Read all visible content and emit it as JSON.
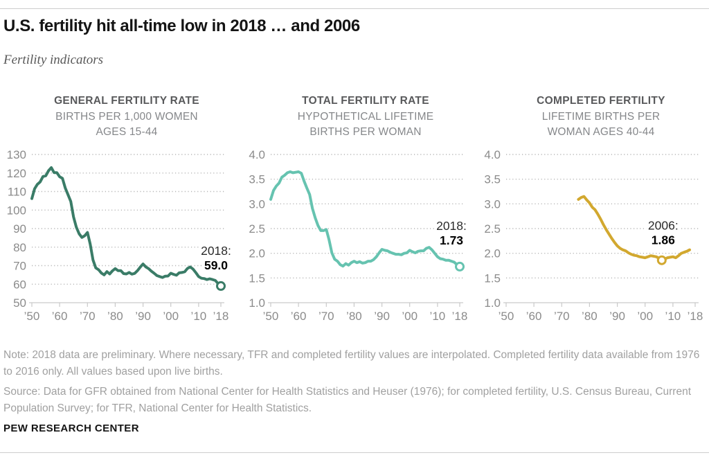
{
  "header": {
    "title": "U.S. fertility hit all-time low in 2018 … and 2006",
    "subtitle": "Fertility indicators"
  },
  "chart_data": [
    {
      "type": "line",
      "title": "GENERAL FERTILITY RATE",
      "subtitle_lines": [
        "BIRTHS PER 1,000 WOMEN",
        "AGES 15-44"
      ],
      "color": "#3a7c67",
      "ylim": [
        50,
        130
      ],
      "xlim": [
        1950,
        2018
      ],
      "yticks": [
        50,
        60,
        70,
        80,
        90,
        100,
        110,
        120,
        130
      ],
      "ytick_labels": [
        "50",
        "60",
        "70",
        "80",
        "90",
        "100",
        "110",
        "120",
        "130"
      ],
      "xticks": [
        1950,
        1960,
        1970,
        1980,
        1990,
        2000,
        2010,
        2018
      ],
      "xtick_labels": [
        "’50",
        "’60",
        "’70",
        "’80",
        "’90",
        "’00",
        "’10",
        "’18"
      ],
      "grid": "dotted-horizontal",
      "x_start": 1950,
      "values": [
        106.2,
        111.5,
        113.9,
        115.2,
        118.1,
        118.5,
        121.2,
        122.9,
        120.2,
        120.2,
        118.0,
        117.1,
        112.0,
        108.3,
        104.7,
        96.3,
        90.8,
        87.2,
        85.2,
        86.1,
        87.9,
        81.6,
        73.1,
        68.8,
        67.8,
        66.0,
        65.0,
        66.8,
        65.5,
        67.2,
        68.4,
        67.3,
        67.3,
        65.7,
        65.5,
        66.3,
        65.4,
        65.8,
        67.3,
        69.2,
        70.9,
        69.3,
        68.4,
        67.0,
        65.9,
        64.6,
        64.1,
        63.6,
        64.3,
        64.4,
        65.9,
        65.3,
        64.8,
        66.1,
        66.3,
        66.7,
        68.5,
        69.3,
        68.1,
        66.2,
        64.1,
        63.2,
        63.0,
        62.5,
        62.9,
        62.5,
        62.0,
        60.3,
        59.0
      ],
      "marker": {
        "year": 2018,
        "value": 59.0
      },
      "annotation": {
        "label": "2018:",
        "value": "59.0"
      }
    },
    {
      "type": "line",
      "title": "TOTAL FERTILITY RATE",
      "subtitle_lines": [
        "HYPOTHETICAL LIFETIME",
        "BIRTHS PER WOMAN"
      ],
      "color": "#66c3b0",
      "ylim": [
        1.0,
        4.0
      ],
      "xlim": [
        1950,
        2018
      ],
      "yticks": [
        1.0,
        1.5,
        2.0,
        2.5,
        3.0,
        3.5,
        4.0
      ],
      "ytick_labels": [
        "1.0",
        "1.5",
        "2.0",
        "2.5",
        "3.0",
        "3.5",
        "4.0"
      ],
      "xticks": [
        1950,
        1960,
        1970,
        1980,
        1990,
        2000,
        2010,
        2018
      ],
      "xtick_labels": [
        "’50",
        "’60",
        "’70",
        "’80",
        "’90",
        "’00",
        "’10",
        "’18"
      ],
      "grid": "dotted-horizontal",
      "x_start": 1950,
      "values": [
        3.09,
        3.27,
        3.36,
        3.42,
        3.54,
        3.58,
        3.63,
        3.65,
        3.63,
        3.64,
        3.65,
        3.62,
        3.46,
        3.32,
        3.19,
        2.91,
        2.72,
        2.56,
        2.46,
        2.46,
        2.48,
        2.27,
        2.01,
        1.88,
        1.84,
        1.77,
        1.74,
        1.79,
        1.76,
        1.81,
        1.84,
        1.81,
        1.83,
        1.8,
        1.81,
        1.84,
        1.84,
        1.87,
        1.93,
        2.01,
        2.08,
        2.06,
        2.05,
        2.02,
        2.0,
        1.98,
        1.98,
        1.97,
        2.0,
        2.01,
        2.06,
        2.03,
        2.01,
        2.04,
        2.05,
        2.05,
        2.1,
        2.12,
        2.07,
        2.0,
        1.93,
        1.89,
        1.88,
        1.86,
        1.86,
        1.84,
        1.82,
        1.77,
        1.73
      ],
      "marker": {
        "year": 2018,
        "value": 1.73
      },
      "annotation": {
        "label": "2018:",
        "value": "1.73"
      }
    },
    {
      "type": "line",
      "title": "COMPLETED FERTILITY",
      "subtitle_lines": [
        "LIFETIME BIRTHS PER",
        "WOMAN AGES 40-44"
      ],
      "color": "#d2a82f",
      "ylim": [
        1.0,
        4.0
      ],
      "xlim": [
        1950,
        2018
      ],
      "yticks": [
        1.0,
        1.5,
        2.0,
        2.5,
        3.0,
        3.5,
        4.0
      ],
      "ytick_labels": [
        "1.0",
        "1.5",
        "2.0",
        "2.5",
        "3.0",
        "3.5",
        "4.0"
      ],
      "xticks": [
        1950,
        1960,
        1970,
        1980,
        1990,
        2000,
        2010,
        2018
      ],
      "xtick_labels": [
        "’50",
        "’60",
        "’70",
        "’80",
        "’90",
        "’00",
        "’10",
        "’18"
      ],
      "grid": "dotted-horizontal",
      "x_start": 1976,
      "values": [
        3.09,
        3.13,
        3.15,
        3.08,
        3.02,
        2.93,
        2.88,
        2.79,
        2.69,
        2.58,
        2.48,
        2.39,
        2.3,
        2.22,
        2.15,
        2.1,
        2.07,
        2.05,
        2.01,
        1.98,
        1.96,
        1.95,
        1.93,
        1.92,
        1.91,
        1.93,
        1.95,
        1.94,
        1.93,
        1.9,
        1.86,
        1.88,
        1.91,
        1.92,
        1.93,
        1.91,
        1.95,
        2.0,
        2.02,
        2.04,
        2.07
      ],
      "marker": {
        "year": 2006,
        "value": 1.86
      },
      "annotation": {
        "label": "2006:",
        "value": "1.86"
      }
    }
  ],
  "footer": {
    "note": "Note: 2018 data are preliminary. Where necessary, TFR and completed fertility values are interpolated. Completed fertility data available from 1976 to 2016 only. All values based upon live births.",
    "source": "Source: Data for GFR obtained from National Center for Health Statistics and Heuser (1976); for completed fertility, U.S. Census Bureau, Current Population Survey; for TFR, National Center for Health Statistics.",
    "brand": "PEW RESEARCH CENTER"
  }
}
